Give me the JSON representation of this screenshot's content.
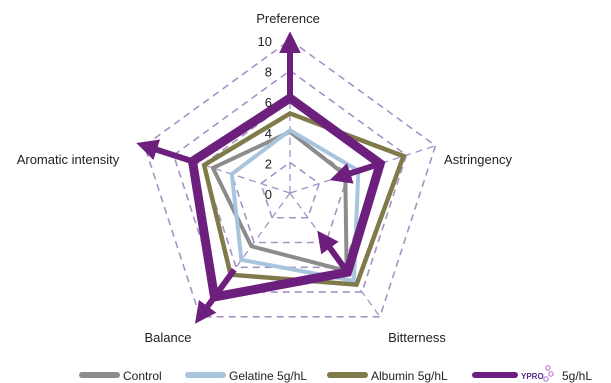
{
  "chart_data": {
    "type": "radar",
    "title": "",
    "axes": [
      "Preference",
      "Astringency",
      "Bitterness",
      "Balance",
      "Aromatic intensity"
    ],
    "r_ticks": [
      "0",
      "2",
      "4",
      "6",
      "8",
      "10"
    ],
    "r_range": [
      0,
      10
    ],
    "grid": "dashed pentagon rings",
    "legend_position": "bottom",
    "series": [
      {
        "name": "Control",
        "color": "#8c8c8c",
        "values": [
          4.0,
          3.8,
          6.3,
          4.3,
          5.3
        ]
      },
      {
        "name": "Gelatine 5g/hL",
        "color": "#a9c4dd",
        "values": [
          4.1,
          4.7,
          7.1,
          5.4,
          4.0
        ]
      },
      {
        "name": "Albumin 5g/hL",
        "color": "#7f7a4a",
        "values": [
          5.2,
          7.8,
          7.4,
          6.6,
          5.9
        ]
      },
      {
        "name": "5g/hL",
        "color": "#6d1f7e",
        "values": [
          6.2,
          6.2,
          6.4,
          8.4,
          6.7
        ]
      }
    ],
    "arrows": [
      {
        "axis": "Preference",
        "from": 6.2,
        "to": 10
      },
      {
        "axis": "Astringency",
        "from": 6.0,
        "to": 3.3
      },
      {
        "axis": "Bitterness",
        "from": 6.4,
        "to": 3.6
      },
      {
        "axis": "Balance",
        "from": 6.2,
        "to": 10
      },
      {
        "axis": "Aromatic intensity",
        "from": 6.7,
        "to": 10
      }
    ],
    "legend_logo_text": "YPRO"
  }
}
